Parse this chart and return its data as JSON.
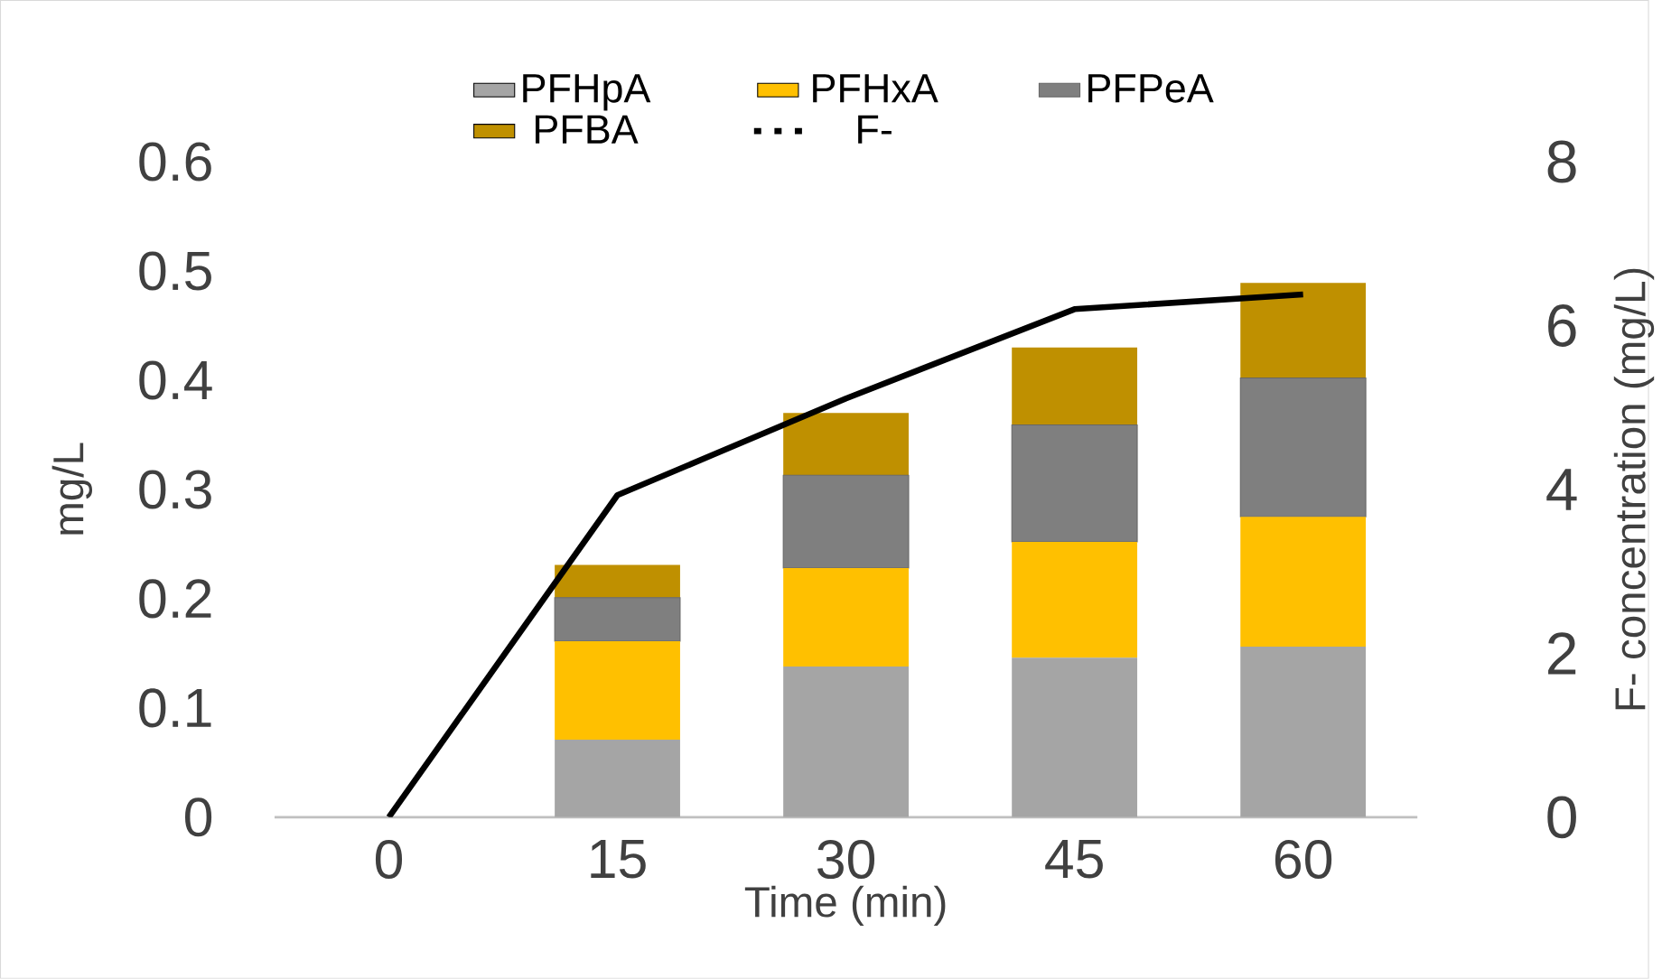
{
  "chart_data": {
    "type": "bar",
    "stacked": true,
    "xlabel": "Time (min)",
    "ylabel": "mg/L",
    "y2label": "F- concentration (mg/L)",
    "categories": [
      "0",
      "15",
      "30",
      "45",
      "60"
    ],
    "series": [
      {
        "name": "PFHpA",
        "color": "#a5a5a5",
        "values": [
          null,
          0.071,
          0.138,
          0.146,
          0.156
        ]
      },
      {
        "name": "PFHxA",
        "color": "#ffc000",
        "values": [
          null,
          0.09,
          0.09,
          0.106,
          0.119
        ]
      },
      {
        "name": "PFPeA",
        "color": "#7f7f7f",
        "values": [
          null,
          0.04,
          0.085,
          0.107,
          0.127
        ]
      },
      {
        "name": "PFBA",
        "color": "#bf9000",
        "values": [
          null,
          0.03,
          0.057,
          0.071,
          0.087
        ]
      },
      {
        "name": "F-",
        "type": "line",
        "axis": "y2",
        "color": "#000000",
        "values": [
          0,
          3.93,
          5.11,
          6.2,
          6.38
        ]
      }
    ],
    "ylim": [
      0,
      0.6
    ],
    "yticks": [
      0,
      0.1,
      0.2,
      0.3,
      0.4,
      0.5,
      0.6
    ],
    "y2lim": [
      0,
      8
    ],
    "y2ticks": [
      0,
      2,
      4,
      6,
      8
    ],
    "legend": "top"
  }
}
